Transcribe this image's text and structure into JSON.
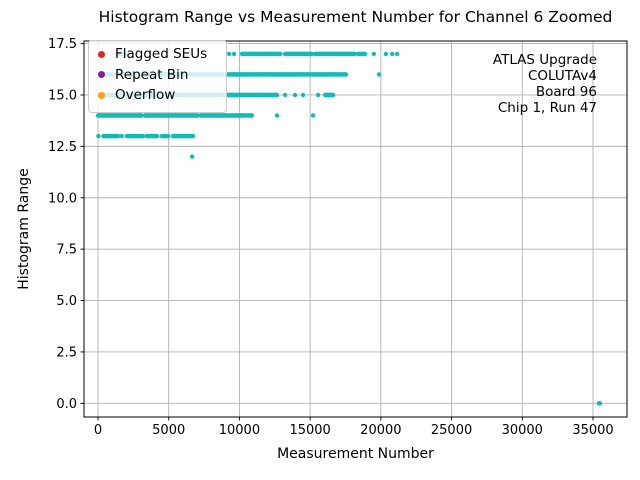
{
  "chart_data": {
    "type": "scatter",
    "title": "Histogram Range vs Measurement Number for Channel 6 Zoomed",
    "xlabel": "Measurement Number",
    "ylabel": "Histogram Range",
    "xlim": [
      -1000,
      37400
    ],
    "ylim": [
      -0.7,
      17.6
    ],
    "grid": true,
    "grid_color": "#b0b0b0",
    "axis_color": "#000000",
    "xticks": [
      0,
      5000,
      10000,
      15000,
      20000,
      25000,
      30000,
      35000
    ],
    "xtick_labels": [
      "0",
      "5000",
      "10000",
      "15000",
      "20000",
      "25000",
      "30000",
      "35000"
    ],
    "yticks": [
      0,
      2.5,
      5,
      7.5,
      10,
      12.5,
      15,
      17.5
    ],
    "ytick_labels": [
      "0.0",
      "2.5",
      "5.0",
      "7.5",
      "10.0",
      "12.5",
      "15.0",
      "17.5"
    ],
    "legend": {
      "position": "upper left",
      "items": [
        {
          "label": "Flagged SEUs",
          "color": "#e02622"
        },
        {
          "label": "Repeat Bin",
          "color": "#851b9b"
        },
        {
          "label": "Overflow",
          "color": "#ffa011"
        }
      ]
    },
    "annotation": {
      "align": "right",
      "lines": [
        "ATLAS Upgrade",
        "COLUTAv4",
        "Board 96",
        "Chip 1, Run 47"
      ]
    },
    "series": [
      {
        "name": "Histogram Range",
        "color": "#13bab8",
        "marker_radius": 2.2,
        "clusters": [
          {
            "y": 17,
            "x0": 1350,
            "x1": 1950,
            "n": 6
          },
          {
            "y": 17,
            "x0": 10180,
            "x1": 11600,
            "n": 30
          },
          {
            "y": 17,
            "x0": 11700,
            "x1": 12300,
            "n": 13
          },
          {
            "y": 17,
            "x0": 12400,
            "x1": 12900,
            "n": 11
          },
          {
            "y": 17,
            "x0": 13230,
            "x1": 15130,
            "n": 40
          },
          {
            "y": 17,
            "x0": 15350,
            "x1": 18170,
            "n": 60
          },
          {
            "y": 17,
            "x0": 18390,
            "x1": 18880,
            "n": 11
          },
          {
            "y": 16,
            "x0": 350,
            "x1": 9050,
            "n": 175
          },
          {
            "y": 16,
            "x0": 9190,
            "x1": 17550,
            "n": 170
          },
          {
            "y": 15,
            "x0": 350,
            "x1": 12660,
            "n": 250
          },
          {
            "y": 15,
            "x0": 16050,
            "x1": 16620,
            "n": 14
          },
          {
            "y": 14,
            "x0": 0,
            "x1": 3100,
            "n": 65
          },
          {
            "y": 14,
            "x0": 3320,
            "x1": 7070,
            "n": 78
          },
          {
            "y": 14,
            "x0": 7280,
            "x1": 10400,
            "n": 65
          },
          {
            "y": 14,
            "x0": 10500,
            "x1": 10890,
            "n": 7
          },
          {
            "y": 13,
            "x0": 370,
            "x1": 1430,
            "n": 22
          },
          {
            "y": 13,
            "x0": 2030,
            "x1": 3200,
            "n": 25
          },
          {
            "y": 13,
            "x0": 3440,
            "x1": 4170,
            "n": 16
          },
          {
            "y": 13,
            "x0": 4510,
            "x1": 4970,
            "n": 10
          },
          {
            "y": 13,
            "x0": 5300,
            "x1": 6720,
            "n": 30
          }
        ],
        "points": [
          [
            9270,
            17
          ],
          [
            9620,
            17
          ],
          [
            19500,
            17
          ],
          [
            20350,
            17
          ],
          [
            20800,
            17
          ],
          [
            21150,
            17
          ],
          [
            19870,
            16
          ],
          [
            13230,
            15
          ],
          [
            13930,
            15
          ],
          [
            14500,
            15
          ],
          [
            15560,
            15
          ],
          [
            12660,
            14
          ],
          [
            15200,
            14
          ],
          [
            30,
            13
          ],
          [
            1680,
            13
          ],
          [
            6650,
            12
          ],
          [
            35420,
            0
          ],
          [
            35490,
            0
          ]
        ]
      }
    ]
  }
}
